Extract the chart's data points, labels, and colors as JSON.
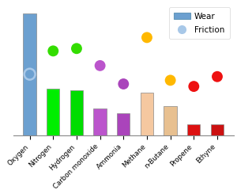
{
  "categories": [
    "Oxygen",
    "Nitrogen",
    "Hydrogen",
    "Carbon monoxide",
    "Ammonia",
    "Methane",
    "n-Butane",
    "Propene",
    "Ethyne"
  ],
  "bar_heights": [
    1.0,
    0.38,
    0.37,
    0.22,
    0.18,
    0.35,
    0.24,
    0.09,
    0.09
  ],
  "bar_colors": [
    "#6CA0D0",
    "#00EE00",
    "#00DD00",
    "#BB55CC",
    "#AA44BB",
    "#F5C8A0",
    "#E8C090",
    "#DD1111",
    "#CC1111"
  ],
  "dot_y": [
    0.5,
    0.69,
    0.71,
    0.57,
    0.42,
    0.8,
    0.45,
    0.4,
    0.48
  ],
  "dot_colors": [
    "#A8C8E8",
    "#33DD00",
    "#33DD00",
    "#BB55CC",
    "#AA44BB",
    "#FFB800",
    "#FFB800",
    "#EE1111",
    "#EE1111"
  ],
  "oxygen_dot_hollow": true,
  "legend_wear_color": "#6CA0D0",
  "legend_friction_color": "#A8C8E8",
  "ylim": [
    0,
    1.08
  ],
  "dot_size": 100,
  "bar_edge_color": "#888888",
  "bar_linewidth": 0.5
}
